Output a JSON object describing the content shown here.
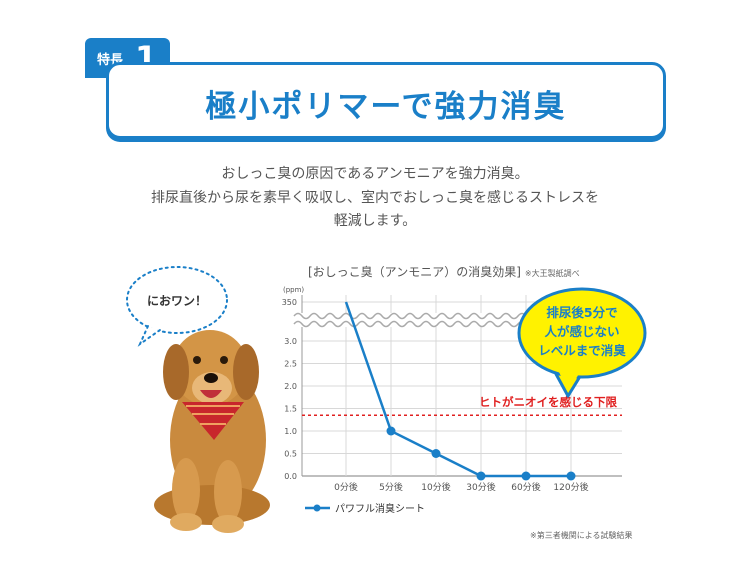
{
  "badge": {
    "label": "特長",
    "number": "1"
  },
  "heading": "極小ポリマーで強力消臭",
  "description": [
    "おしっこ臭の原因であるアンモニアを強力消臭。",
    "排尿直後から尿を素早く吸収し、室内でおしっこ臭を感じるストレスを",
    "軽減します。"
  ],
  "speech_bubble": "におワン！",
  "callout": [
    "排尿後5分で",
    "人が感じない",
    "レベルまで消臭"
  ],
  "threshold_label": "ヒトがニオイを感じる下限",
  "footnote": "※第三者機関による試験結果",
  "colors": {
    "accent": "#1a7fc8",
    "threshold": "#e02020",
    "callout_fill": "#fff200"
  },
  "chart_data": {
    "type": "line",
    "title": "[おしっこ臭（アンモニア）の消臭効果]",
    "note": "※大王製紙調べ",
    "ylabel": "(ppm)",
    "categories": [
      "0分後",
      "5分後",
      "10分後",
      "30分後",
      "60分後",
      "120分後"
    ],
    "y_ticks": [
      "0.0",
      "0.5",
      "1.0",
      "1.5",
      "2.0",
      "2.5",
      "3.0",
      "350"
    ],
    "ylim": [
      0,
      3.5
    ],
    "axis_break": true,
    "threshold": 1.35,
    "series": [
      {
        "name": "パワフル消臭シート",
        "values": [
          350,
          1.0,
          0.5,
          0.0,
          0.0,
          0.0
        ]
      }
    ],
    "grid": true,
    "legend": "bottom-left"
  }
}
